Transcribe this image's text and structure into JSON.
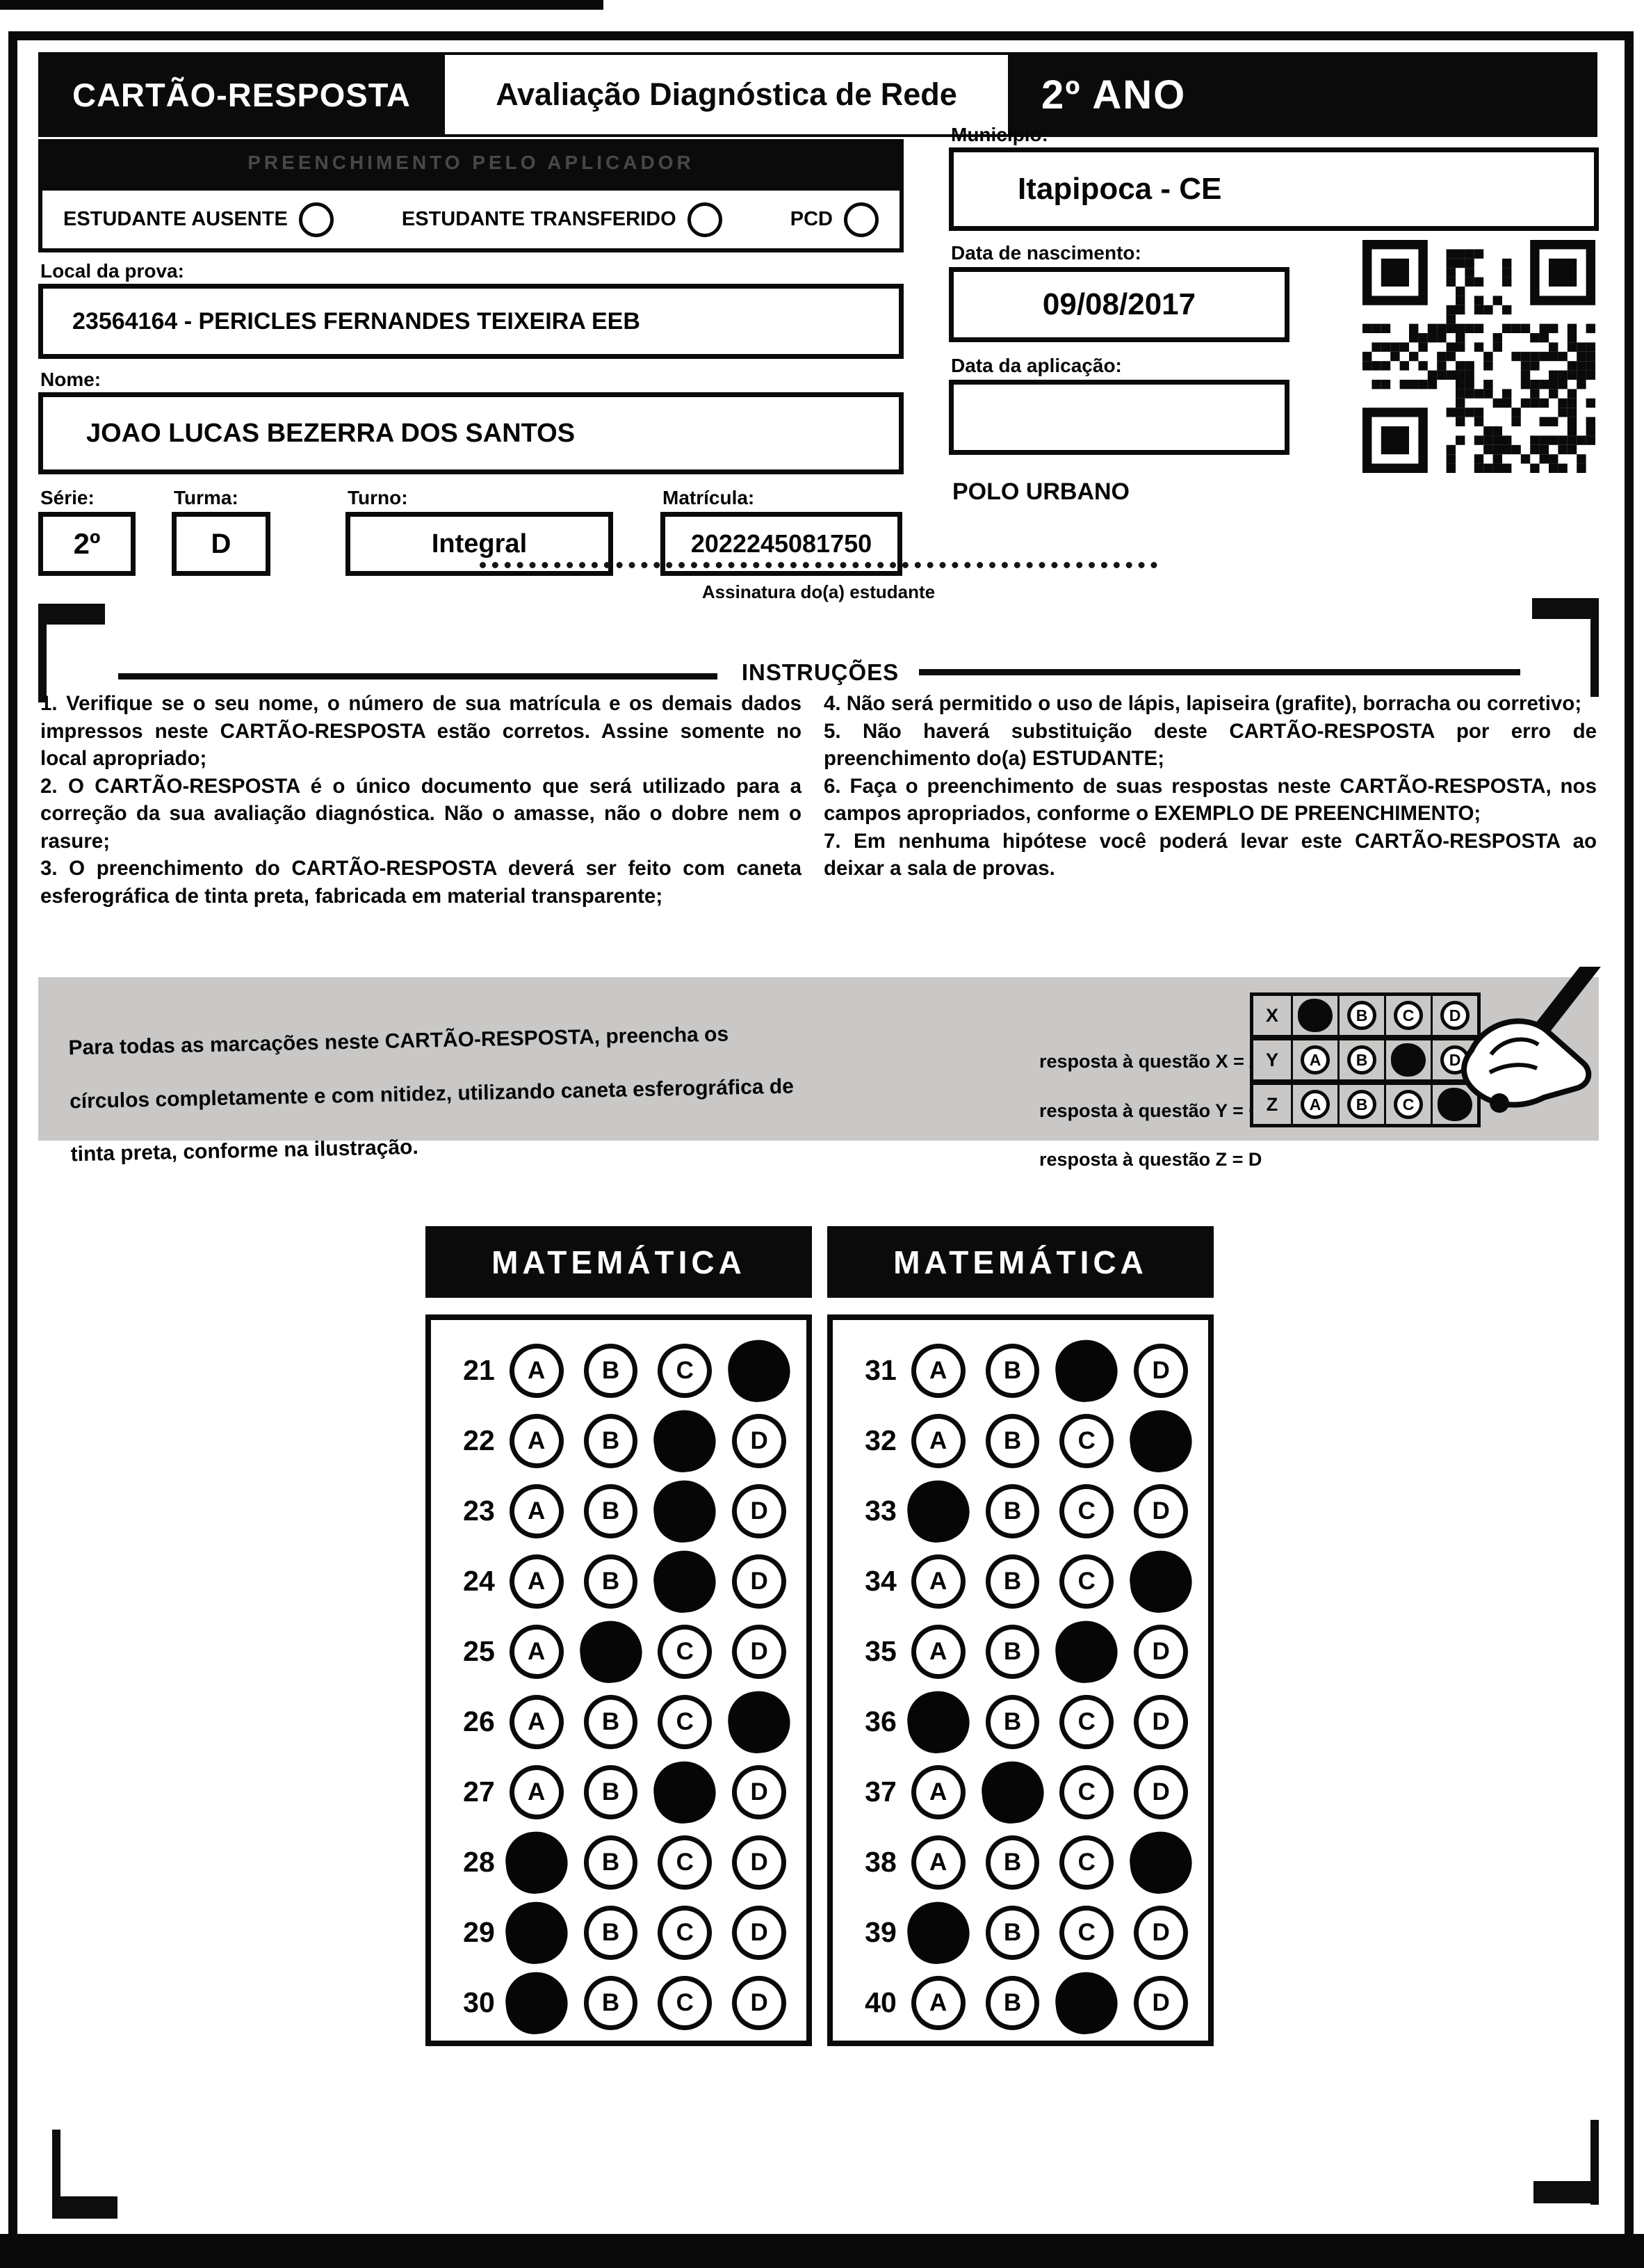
{
  "header": {
    "title": "CARTÃO-RESPOSTA",
    "subtitle": "Avaliação Diagnóstica de Rede",
    "grade": "2º ANO"
  },
  "applicator": {
    "bar_label": "PREENCHIMENTO PELO APLICADOR",
    "options": [
      {
        "label": "ESTUDANTE AUSENTE"
      },
      {
        "label": "ESTUDANTE TRANSFERIDO"
      },
      {
        "label": "PCD"
      }
    ]
  },
  "student": {
    "local_label": "Local da prova:",
    "local_value": "23564164 - PERICLES FERNANDES TEIXEIRA EEB",
    "name_label": "Nome:",
    "name_value": "JOAO LUCAS BEZERRA DOS SANTOS",
    "serie_label": "Série:",
    "serie_value": "2º",
    "turma_label": "Turma:",
    "turma_value": "D",
    "turno_label": "Turno:",
    "turno_value": "Integral",
    "matricula_label": "Matrícula:",
    "matricula_value": "2022245081750",
    "municipio_label": "Município:",
    "municipio_value": "Itapipoca - CE",
    "nascimento_label": "Data de nascimento:",
    "nascimento_value": "09/08/2017",
    "aplicacao_label": "Data da aplicação:",
    "aplicacao_value": "",
    "polo": "POLO URBANO"
  },
  "signature": {
    "label": "Assinatura do(a) estudante"
  },
  "instructions": {
    "title": "INSTRUÇÕES",
    "left": [
      "1. Verifique se o seu nome, o número de sua matrícula e os demais dados impressos neste CARTÃO-RESPOSTA estão corretos. Assine somente no local apropriado;",
      "2. O CARTÃO-RESPOSTA é o único documento que será utilizado para a correção da sua avaliação diagnóstica. Não o amasse, não o dobre nem o rasure;",
      "3. O preenchimento do CARTÃO-RESPOSTA deverá ser feito com caneta esferográfica de tinta preta, fabricada em material transparente;"
    ],
    "right": [
      "4. Não será permitido o uso de lápis, lapiseira (grafite), borracha ou corretivo;",
      "5. Não haverá substituição deste CARTÃO-RESPOSTA por erro de preenchimento do(a) ESTUDANTE;",
      "6. Faça o preenchimento de suas respostas neste CARTÃO-RESPOSTA, nos campos apropriados, conforme o EXEMPLO DE PREENCHIMENTO;",
      "7. Em nenhuma hipótese você poderá levar este CARTÃO-RESPOSTA ao deixar a sala de provas."
    ]
  },
  "example": {
    "text_lines": [
      "Para todas as marcações neste CARTÃO-RESPOSTA, preencha os",
      "círculos completamente e com nitidez, utilizando caneta esferográfica de",
      "tinta preta, conforme na ilustração."
    ],
    "notes": [
      "resposta à questão X = A",
      "resposta à questão Y = C",
      "resposta à questão Z = D"
    ],
    "rows": [
      {
        "label": "X",
        "filled": "A"
      },
      {
        "label": "Y",
        "filled": "C"
      },
      {
        "label": "Z",
        "filled": "D"
      }
    ]
  },
  "choices": [
    "A",
    "B",
    "C",
    "D"
  ],
  "answers": [
    {
      "title": "MATEMÁTICA",
      "questions": [
        {
          "n": "21",
          "filled": "D"
        },
        {
          "n": "22",
          "filled": "C"
        },
        {
          "n": "23",
          "filled": "C"
        },
        {
          "n": "24",
          "filled": "C"
        },
        {
          "n": "25",
          "filled": "B"
        },
        {
          "n": "26",
          "filled": "D"
        },
        {
          "n": "27",
          "filled": "C"
        },
        {
          "n": "28",
          "filled": "A"
        },
        {
          "n": "29",
          "filled": "A"
        },
        {
          "n": "30",
          "filled": "A"
        }
      ]
    },
    {
      "title": "MATEMÁTICA",
      "questions": [
        {
          "n": "31",
          "filled": "C"
        },
        {
          "n": "32",
          "filled": "D"
        },
        {
          "n": "33",
          "filled": "A"
        },
        {
          "n": "34",
          "filled": "D"
        },
        {
          "n": "35",
          "filled": "C"
        },
        {
          "n": "36",
          "filled": "A"
        },
        {
          "n": "37",
          "filled": "B"
        },
        {
          "n": "38",
          "filled": "D"
        },
        {
          "n": "39",
          "filled": "A"
        },
        {
          "n": "40",
          "filled": "C"
        }
      ]
    }
  ]
}
